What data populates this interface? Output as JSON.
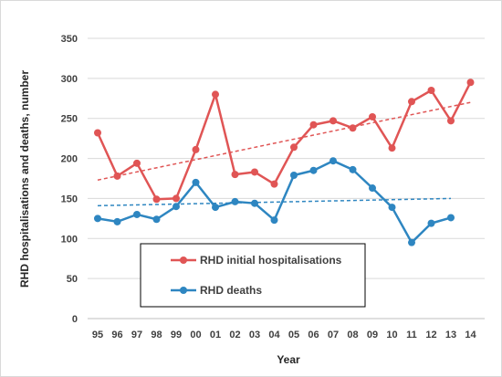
{
  "chart_data": {
    "type": "line",
    "title": "",
    "xlabel": "Year",
    "ylabel": "RHD hospitalisations and deaths, number",
    "ylim": [
      0,
      350
    ],
    "yticks": [
      0,
      50,
      100,
      150,
      200,
      250,
      300,
      350
    ],
    "grid": "horizontal",
    "legend_position": "bottom-center",
    "categories": [
      "95",
      "96",
      "97",
      "98",
      "99",
      "00",
      "01",
      "02",
      "03",
      "04",
      "05",
      "06",
      "07",
      "08",
      "09",
      "10",
      "11",
      "12",
      "13",
      "14"
    ],
    "series": [
      {
        "name": "RHD initial hospitalisations",
        "color": "#e05555",
        "values": [
          232,
          178,
          194,
          149,
          150,
          211,
          280,
          180,
          183,
          168,
          214,
          242,
          247,
          238,
          252,
          213,
          271,
          285,
          247,
          295
        ],
        "trendline": [
          173,
          270
        ]
      },
      {
        "name": "RHD deaths",
        "color": "#2e86c1",
        "values": [
          125,
          121,
          130,
          124,
          140,
          170,
          139,
          146,
          144,
          123,
          179,
          185,
          197,
          186,
          163,
          139,
          95,
          119,
          126,
          null
        ],
        "trendline": [
          141,
          150
        ]
      }
    ]
  }
}
